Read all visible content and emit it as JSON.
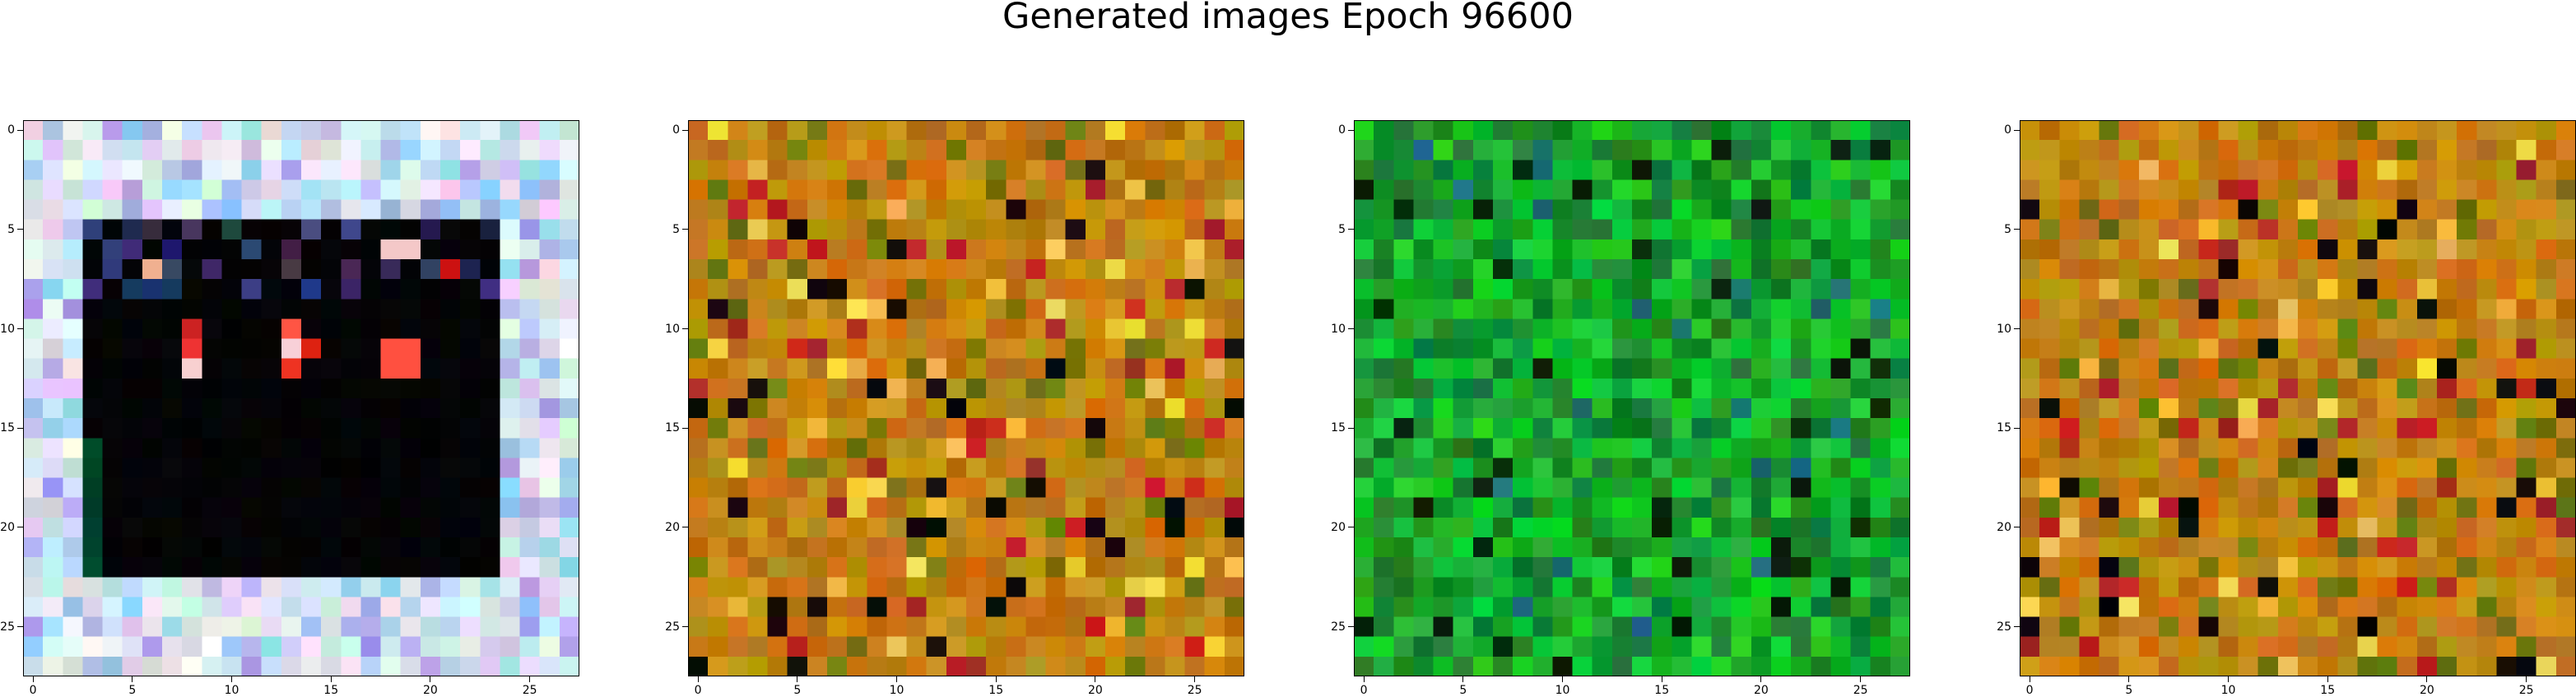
{
  "title": "Generated images Epoch 96600",
  "chart_data": {
    "type": "heatmap",
    "title": "Generated images Epoch 96600",
    "grid": false,
    "panels": [
      {
        "name": "",
        "size": [
          28,
          28
        ],
        "xlim": [
          -0.5,
          27.5
        ],
        "ylim": [
          27.5,
          -0.5
        ],
        "xticks": [
          0,
          5,
          10,
          15,
          20,
          25
        ],
        "yticks": [
          0,
          5,
          10,
          15,
          20,
          25
        ],
        "xtick_labels": [
          "0",
          "5",
          "10",
          "15",
          "20",
          "25"
        ],
        "ytick_labels": [
          "0",
          "5",
          "10",
          "15",
          "20",
          "25"
        ],
        "palette": "pastel",
        "inner_black_region": {
          "rows": [
            5,
            22
          ],
          "cols": [
            3,
            23
          ]
        },
        "highlights": [
          {
            "row": 7,
            "col": 6,
            "color": "#f0b090"
          },
          {
            "row": 6,
            "col": 18,
            "color": "#f4c8c8"
          },
          {
            "row": 6,
            "col": 19,
            "color": "#f4c8c8"
          },
          {
            "row": 7,
            "col": 21,
            "color": "#cc1111"
          },
          {
            "row": 10,
            "col": 8,
            "color": "#cc2222"
          },
          {
            "row": 11,
            "col": 8,
            "color": "#ee3333"
          },
          {
            "row": 12,
            "col": 8,
            "color": "#f8d0d0"
          },
          {
            "row": 10,
            "col": 13,
            "color": "#ff5544"
          },
          {
            "row": 11,
            "col": 13,
            "color": "#f8d0d8"
          },
          {
            "row": 12,
            "col": 13,
            "color": "#ee3322"
          },
          {
            "row": 11,
            "col": 14,
            "color": "#dd2211"
          },
          {
            "row": 11,
            "col": 18,
            "color": "#ff5040"
          },
          {
            "row": 11,
            "col": 19,
            "color": "#ff5040"
          },
          {
            "row": 12,
            "col": 18,
            "color": "#ff5040"
          },
          {
            "row": 12,
            "col": 19,
            "color": "#ff5040"
          }
        ]
      },
      {
        "name": "",
        "size": [
          28,
          28
        ],
        "xlim": [
          -0.5,
          27.5
        ],
        "ylim": [
          27.5,
          -0.5
        ],
        "xticks": [
          0,
          5,
          10,
          15,
          20,
          25
        ],
        "yticks": [
          0,
          5,
          10,
          15,
          20,
          25
        ],
        "xtick_labels": [
          "0",
          "5",
          "10",
          "15",
          "20",
          "25"
        ],
        "ytick_labels": [
          "0",
          "5",
          "10",
          "15",
          "20",
          "25"
        ],
        "palette": "olive-orange"
      },
      {
        "name": "",
        "size": [
          28,
          28
        ],
        "xlim": [
          -0.5,
          27.5
        ],
        "ylim": [
          27.5,
          -0.5
        ],
        "xticks": [
          0,
          5,
          10,
          15,
          20,
          25
        ],
        "yticks": [
          0,
          5,
          10,
          15,
          20,
          25
        ],
        "xtick_labels": [
          "0",
          "5",
          "10",
          "15",
          "20",
          "25"
        ],
        "ytick_labels": [
          "0",
          "5",
          "10",
          "15",
          "20",
          "25"
        ],
        "palette": "green"
      },
      {
        "name": "",
        "size": [
          28,
          28
        ],
        "xlim": [
          -0.5,
          27.5
        ],
        "ylim": [
          27.5,
          -0.5
        ],
        "xticks": [
          0,
          5,
          10,
          15,
          20,
          25
        ],
        "yticks": [
          0,
          5,
          10,
          15,
          20,
          25
        ],
        "xtick_labels": [
          "0",
          "5",
          "10",
          "15",
          "20",
          "25"
        ],
        "ytick_labels": [
          "0",
          "5",
          "10",
          "15",
          "20",
          "25"
        ],
        "palette": "olive-orange"
      }
    ]
  }
}
